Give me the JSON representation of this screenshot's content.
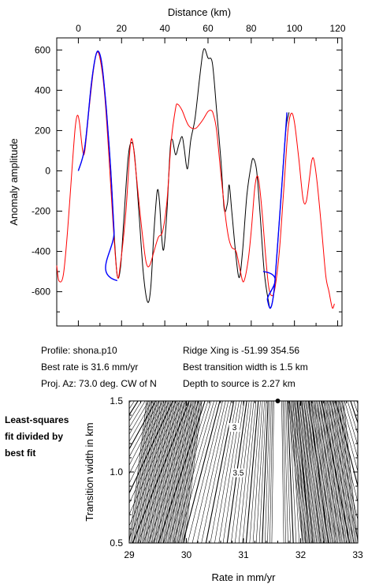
{
  "chart_data": [
    {
      "type": "line",
      "xlabel": "Distance (km)",
      "ylabel": "Anomaly amplitude",
      "xlim": [
        -10,
        122
      ],
      "ylim": [
        -770,
        660
      ],
      "x_ticks": [
        0,
        20,
        40,
        60,
        80,
        100,
        120
      ],
      "y_ticks": [
        -600,
        -400,
        -200,
        0,
        200,
        400,
        600
      ],
      "x_axis_position": "top",
      "series": [
        {
          "color": "#000000",
          "points": [
            [
              0,
              0
            ],
            [
              3,
              120
            ],
            [
              6,
              430
            ],
            [
              8,
              570
            ],
            [
              9.5,
              590
            ],
            [
              11,
              520
            ],
            [
              13,
              300
            ],
            [
              15,
              0
            ],
            [
              16.5,
              -300
            ],
            [
              18,
              -520
            ],
            [
              19.5,
              -480
            ],
            [
              21,
              -250
            ],
            [
              23,
              60
            ],
            [
              24.5,
              140
            ],
            [
              26,
              80
            ],
            [
              28,
              -200
            ],
            [
              30,
              -500
            ],
            [
              32,
              -650
            ],
            [
              33.5,
              -580
            ],
            [
              35,
              -300
            ],
            [
              36.5,
              -100
            ],
            [
              37.5,
              -150
            ],
            [
              38.5,
              -320
            ],
            [
              39.5,
              -390
            ],
            [
              41,
              -200
            ],
            [
              42.5,
              110
            ],
            [
              43.5,
              155
            ],
            [
              45,
              80
            ],
            [
              46.5,
              130
            ],
            [
              48,
              170
            ],
            [
              49,
              110
            ],
            [
              50.5,
              10
            ],
            [
              52,
              150
            ],
            [
              54,
              260
            ],
            [
              56,
              450
            ],
            [
              57.5,
              580
            ],
            [
              58.5,
              605
            ],
            [
              60,
              560
            ],
            [
              62,
              535
            ],
            [
              64,
              300
            ],
            [
              66,
              50
            ],
            [
              67.5,
              -190
            ],
            [
              69,
              -160
            ],
            [
              69.8,
              -70
            ],
            [
              71,
              -200
            ],
            [
              73,
              -430
            ],
            [
              74.5,
              -530
            ],
            [
              76,
              -400
            ],
            [
              78,
              -120
            ],
            [
              80,
              30
            ],
            [
              81,
              60
            ],
            [
              82.5,
              0
            ],
            [
              84,
              -200
            ],
            [
              86,
              -500
            ],
            [
              88,
              -650
            ],
            [
              89,
              -680
            ],
            [
              90.5,
              -600
            ],
            [
              92,
              -400
            ],
            [
              94,
              -100
            ],
            [
              96,
              200
            ],
            [
              97.5,
              290
            ]
          ]
        },
        {
          "color": "#ff0000",
          "points": [
            [
              -10,
              -470
            ],
            [
              -9,
              -545
            ],
            [
              -7,
              -520
            ],
            [
              -5,
              -300
            ],
            [
              -3,
              0
            ],
            [
              -1.5,
              210
            ],
            [
              -0.5,
              275
            ],
            [
              0.5,
              240
            ],
            [
              2,
              100
            ],
            [
              3,
              100
            ],
            [
              5,
              310
            ],
            [
              7,
              500
            ],
            [
              8.5,
              585
            ],
            [
              10,
              560
            ],
            [
              12,
              400
            ],
            [
              14,
              100
            ],
            [
              16,
              -250
            ],
            [
              18,
              -520
            ],
            [
              19.5,
              -460
            ],
            [
              22,
              -200
            ],
            [
              24,
              120
            ],
            [
              25,
              150
            ],
            [
              26,
              70
            ],
            [
              28,
              -150
            ],
            [
              30,
              -350
            ],
            [
              31.5,
              -460
            ],
            [
              33,
              -470
            ],
            [
              35,
              -400
            ],
            [
              37,
              -330
            ],
            [
              39,
              -300
            ],
            [
              41,
              -150
            ],
            [
              43,
              150
            ],
            [
              45,
              310
            ],
            [
              46,
              330
            ],
            [
              48,
              300
            ],
            [
              51,
              225
            ],
            [
              54,
              210
            ],
            [
              56,
              230
            ],
            [
              58,
              260
            ],
            [
              60,
              295
            ],
            [
              61.5,
              300
            ],
            [
              62.5,
              280
            ],
            [
              64,
              200
            ],
            [
              66,
              -20
            ],
            [
              68,
              -220
            ],
            [
              69.5,
              -330
            ],
            [
              71,
              -380
            ],
            [
              73,
              -400
            ],
            [
              75,
              -500
            ],
            [
              76.5,
              -550
            ],
            [
              78.5,
              -450
            ],
            [
              80,
              -300
            ],
            [
              81.5,
              -100
            ],
            [
              82.5,
              -30
            ],
            [
              83.5,
              -50
            ],
            [
              85,
              -200
            ],
            [
              86.5,
              -400
            ],
            [
              88,
              -570
            ],
            [
              89.5,
              -620
            ],
            [
              91,
              -580
            ],
            [
              93,
              -400
            ],
            [
              95,
              -100
            ],
            [
              97,
              200
            ],
            [
              98.5,
              285
            ],
            [
              100,
              240
            ],
            [
              102,
              60
            ],
            [
              104,
              -140
            ],
            [
              105.5,
              -150
            ],
            [
              107,
              -30
            ],
            [
              108,
              50
            ],
            [
              109,
              55
            ],
            [
              110.5,
              -60
            ],
            [
              112.5,
              -280
            ],
            [
              114.5,
              -520
            ],
            [
              116,
              -600
            ],
            [
              117.5,
              -680
            ],
            [
              118.5,
              -660
            ]
          ]
        },
        {
          "color": "#0000ff",
          "points": [
            [
              0,
              0
            ],
            [
              3,
              120
            ],
            [
              6,
              430
            ],
            [
              8,
              570
            ],
            [
              9.5,
              590
            ],
            [
              11,
              520
            ],
            [
              13,
              300
            ],
            [
              15,
              0
            ],
            [
              16.5,
              -300
            ],
            [
              18,
              -545
            ],
            [
              85.5,
              -500
            ],
            [
              87.5,
              -640
            ],
            [
              89,
              -680
            ],
            [
              90.5,
              -600
            ],
            [
              92,
              -400
            ],
            [
              94,
              -100
            ],
            [
              96.5,
              290
            ]
          ]
        }
      ]
    },
    {
      "type": "contour",
      "xlabel": "Rate in mm/yr",
      "ylabel": "Transition width in km",
      "xlim": [
        29,
        33
      ],
      "ylim": [
        0.5,
        1.5
      ],
      "x_ticks": [
        29,
        30,
        31,
        32,
        33
      ],
      "y_ticks": [
        0.5,
        1.0,
        1.5
      ],
      "contour_labels": [
        "3",
        "3.5"
      ],
      "best_fit": {
        "rate": 31.6,
        "width": 1.5
      }
    }
  ],
  "info": {
    "profile": "Profile: shona.p10",
    "best_rate": "Best rate is 31.6 mm/yr",
    "proj_az": "Proj. Az: 73.0 deg. CW of N",
    "ridge_xing": "Ridge Xing is -51.99 354.56",
    "best_width": "Best transition width is 1.5 km",
    "depth": "Depth to source is   2.27 km"
  },
  "side_note": [
    "Least-squares",
    "fit divided by",
    "best fit"
  ]
}
